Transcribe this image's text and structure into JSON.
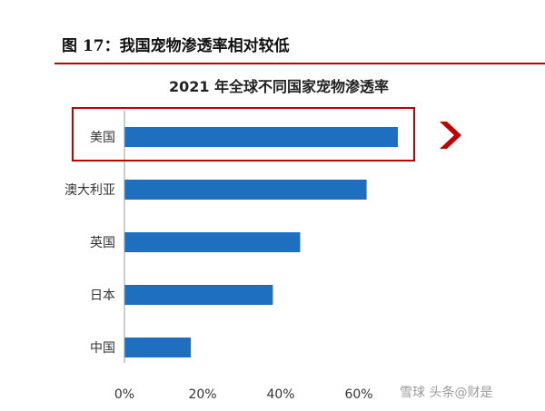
{
  "figure": {
    "label": "图 17：我国宠物渗透率相对较低"
  },
  "watermark": "雪球 头条@财是",
  "colors": {
    "bar": "#1f6fc0",
    "highlight": "#c00000",
    "axis": "#999999"
  },
  "chart_data": {
    "type": "bar",
    "orientation": "horizontal",
    "title": "2021 年全球不同国家宠物渗透率",
    "categories": [
      "美国",
      "澳大利亚",
      "英国",
      "日本",
      "中国"
    ],
    "values": [
      70,
      62,
      45,
      38,
      17
    ],
    "xlim": [
      0,
      70
    ],
    "xticks": [
      "0%",
      "20%",
      "40%",
      "60%"
    ],
    "xtick_values": [
      0,
      20,
      40,
      60
    ],
    "highlighted_category": "美国",
    "grid": false,
    "legend": "none"
  }
}
